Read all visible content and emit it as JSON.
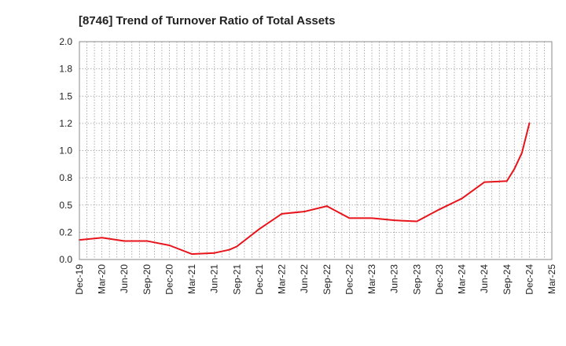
{
  "chart_data": {
    "type": "line",
    "title": "[8746]  Trend of Turnover Ratio of Total Assets",
    "xlabel": "",
    "ylabel": "",
    "ylim": [
      0.0,
      2.0
    ],
    "yticks": [
      "0.0",
      "0.2",
      "0.5",
      "0.8",
      "1.0",
      "1.2",
      "1.5",
      "1.8",
      "2.0"
    ],
    "categories": [
      "Dec-19",
      "Mar-20",
      "Jun-20",
      "Sep-20",
      "Dec-20",
      "Mar-21",
      "Jun-21",
      "Sep-21",
      "Dec-21",
      "Mar-22",
      "Jun-22",
      "Sep-22",
      "Dec-22",
      "Mar-23",
      "Jun-23",
      "Sep-23",
      "Dec-23",
      "Mar-24",
      "Jun-24",
      "Sep-24",
      "Dec-24",
      "Mar-25"
    ],
    "grid": true,
    "color": "#e8141b",
    "series": [
      {
        "name": "",
        "points": [
          {
            "x": 0,
            "y": 0.18
          },
          {
            "x": 1,
            "y": 0.2
          },
          {
            "x": 2,
            "y": 0.17
          },
          {
            "x": 3,
            "y": 0.17
          },
          {
            "x": 4,
            "y": 0.13
          },
          {
            "x": 5,
            "y": 0.05
          },
          {
            "x": 6,
            "y": 0.06
          },
          {
            "x": 6.67,
            "y": 0.09
          },
          {
            "x": 7,
            "y": 0.12
          },
          {
            "x": 8,
            "y": 0.28
          },
          {
            "x": 9,
            "y": 0.42
          },
          {
            "x": 10,
            "y": 0.44
          },
          {
            "x": 11,
            "y": 0.49
          },
          {
            "x": 12,
            "y": 0.38
          },
          {
            "x": 13,
            "y": 0.38
          },
          {
            "x": 14,
            "y": 0.36
          },
          {
            "x": 15,
            "y": 0.35
          },
          {
            "x": 16,
            "y": 0.46
          },
          {
            "x": 17,
            "y": 0.56
          },
          {
            "x": 18,
            "y": 0.71
          },
          {
            "x": 19,
            "y": 0.72
          },
          {
            "x": 19.33,
            "y": 0.83
          },
          {
            "x": 19.67,
            "y": 0.98
          },
          {
            "x": 20,
            "y": 1.25
          }
        ]
      }
    ]
  }
}
